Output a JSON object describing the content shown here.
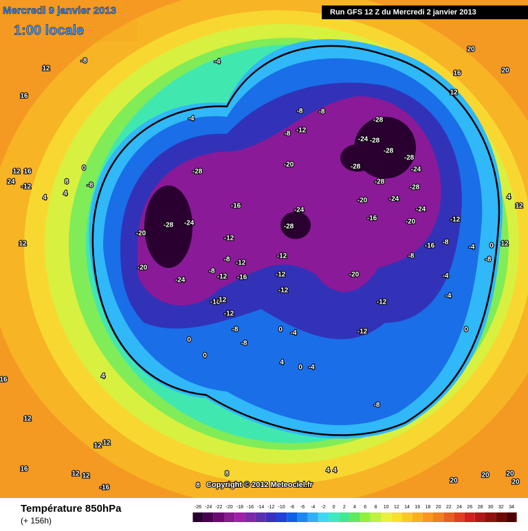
{
  "header": {
    "date": "Mercredi 9 janvier 2013",
    "time": "1:00 locale",
    "run": "Run GFS 12 Z du Mercredi 2 janvier 2013"
  },
  "footer": {
    "title": "Température 850hPa",
    "lead": "(+ 156h)",
    "copyright": "Copyright © 2012 Meteociel.fr"
  },
  "colorbar": {
    "labels": [
      -26,
      -24,
      -22,
      -20,
      -18,
      -16,
      -14,
      -12,
      -10,
      -8,
      -6,
      -4,
      -2,
      0,
      2,
      4,
      6,
      8,
      10,
      12,
      14,
      16,
      18,
      20,
      22,
      24,
      26,
      28,
      30,
      32,
      34
    ],
    "colors": [
      "#2a0030",
      "#4a0050",
      "#6a0a70",
      "#8a1a90",
      "#a020a8",
      "#7a2aa8",
      "#5a30b0",
      "#3a30c0",
      "#2040d8",
      "#1060e8",
      "#1a88f0",
      "#30b0f8",
      "#40d8f0",
      "#40e8c0",
      "#40e890",
      "#60e860",
      "#90f040",
      "#c0f040",
      "#e8f040",
      "#f8e030",
      "#f8c828",
      "#f8b020",
      "#f89820",
      "#f08020",
      "#e86020",
      "#e04020",
      "#d02020",
      "#b01818",
      "#901010",
      "#700808",
      "#500000"
    ]
  },
  "map_labels": [
    -28,
    -24,
    -20,
    -20,
    -24,
    -28,
    -16,
    -12,
    -12,
    -16,
    -12,
    -8,
    -8,
    -16,
    -12,
    -12,
    -8,
    -8,
    0,
    0,
    -20,
    -24,
    -28,
    -12,
    -12,
    -12,
    -20,
    -20,
    -16,
    -12,
    -12,
    -8,
    -28,
    -24,
    -28,
    -28,
    -28,
    -28,
    -24,
    -28,
    -28,
    -24,
    -24,
    -20,
    -8,
    -8,
    -8,
    -12,
    -8,
    -4,
    -12,
    -8,
    -16,
    -4,
    -4,
    -4,
    -8,
    0,
    12,
    4,
    12,
    0,
    12,
    16,
    20,
    20,
    12,
    -8,
    16,
    -4,
    24,
    -12,
    16,
    12,
    4,
    4,
    8,
    0,
    -8,
    12,
    4,
    12,
    16,
    12,
    12,
    16,
    12,
    12,
    -16,
    8,
    8,
    4,
    4,
    20,
    20,
    20,
    20,
    0,
    -4,
    4,
    0,
    -4
  ]
}
